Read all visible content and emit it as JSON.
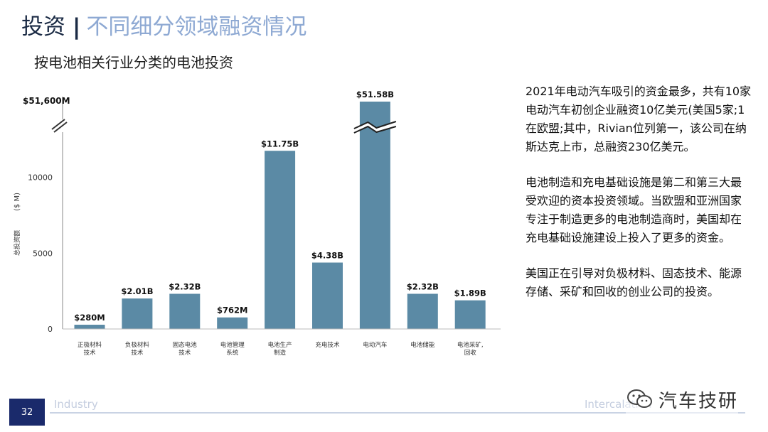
{
  "slide": {
    "title_main": "投资",
    "title_sep": "|",
    "title_sub": "不同细分领域融资情况",
    "page_number": "32",
    "footer_left": "Industry",
    "footer_right": "Intercalation",
    "watermark": "汽车技研",
    "watermark_icon": "wechat-icon"
  },
  "chart_data": {
    "type": "bar",
    "title": "按电池相关行业分类的电池投资",
    "xlabel": "",
    "ylabel": "总投资额",
    "ylabel_unit": "($ M)",
    "ylim": [
      0,
      15000
    ],
    "yticks": [
      0,
      5000,
      10000
    ],
    "ytick_labels": [
      "0",
      "5000",
      "10000"
    ],
    "axis_break_label": "$51,600M",
    "categories": [
      [
        "正极材料",
        "技术"
      ],
      [
        "负极材料",
        "技术"
      ],
      [
        "固态电池",
        "技术"
      ],
      [
        "电池管理",
        "系统"
      ],
      [
        "电池生产",
        "制造"
      ],
      [
        "充电技术"
      ],
      [
        "电动汽车"
      ],
      [
        "电池储能"
      ],
      [
        "电池采矿,",
        "回收"
      ]
    ],
    "values": [
      280,
      2010,
      2320,
      762,
      11750,
      4380,
      51580,
      2320,
      1890
    ],
    "data_labels": [
      "$280M",
      "$2.01B",
      "$2.32B",
      "$762M",
      "$11.75B",
      "$4.38B",
      "$51.58B",
      "$2.32B",
      "$1.89B"
    ],
    "broken_bar_index": 6,
    "bar_color": "#5b8aa5",
    "grid": false,
    "legend": "none"
  },
  "side_text": {
    "p1": "2021年电动汽车吸引的资金最多，共有10家电动汽车初创企业融资10亿美元(美国5家;1在欧盟;其中，Rivian位列第一，该公司在纳斯达克上市，总融资230亿美元。",
    "p2": "电池制造和充电基础设施是第二和第三大最受欢迎的资本投资领域。当欧盟和亚洲国家专注于制造更多的电池制造商时，美国却在充电基础设施建设上投入了更多的资金。",
    "p3": "美国正在引导对负极材料、固态技术、能源存储、采矿和回收的创业公司的投资。"
  }
}
